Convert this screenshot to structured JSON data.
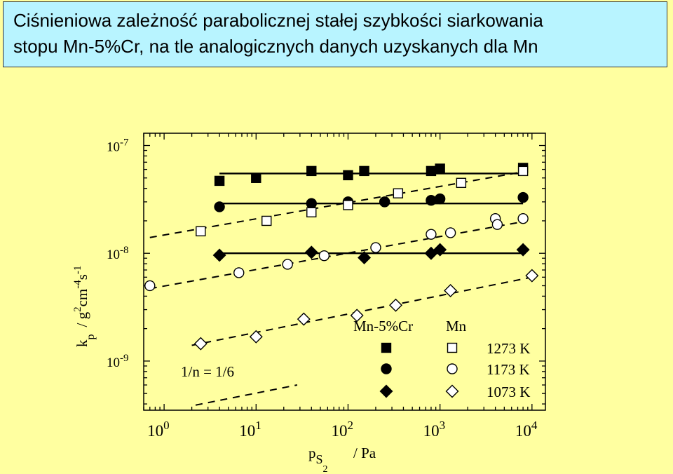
{
  "header": {
    "title_line1": "Ciśnieniowa zależność parabolicznej stałej szybkości siarkowania",
    "title_line2": "stopu Mn-5%Cr, na tle analogicznych danych uzyskanych dla Mn"
  },
  "chart_data": {
    "type": "scatter",
    "x_scale": "log",
    "y_scale": "log",
    "xlim": [
      0.6,
      14000
    ],
    "ylim": [
      3.5e-10,
      1.3e-07
    ],
    "grid": false,
    "xlabel": {
      "main": "p",
      "sub": "S",
      "subsub": "2",
      "unit": "/ Pa"
    },
    "ylabel": {
      "k": "k",
      "p": "p",
      "unit": "/ g",
      "e1": "2",
      "cm": "cm",
      "e2": "-4",
      "s": "s",
      "e3": "-1"
    },
    "x_ticks": [
      {
        "value": 1,
        "base": "10",
        "exp": "0"
      },
      {
        "value": 10,
        "base": "10",
        "exp": "1"
      },
      {
        "value": 100,
        "base": "10",
        "exp": "2"
      },
      {
        "value": 1000,
        "base": "10",
        "exp": "3"
      },
      {
        "value": 10000,
        "base": "10",
        "exp": "4"
      }
    ],
    "y_ticks": [
      {
        "value": 1e-07,
        "base": "10",
        "exp": "-7"
      },
      {
        "value": 1e-08,
        "base": "10",
        "exp": "-8"
      },
      {
        "value": 1e-09,
        "base": "10",
        "exp": "-9"
      }
    ],
    "legend": {
      "placement": "bottom-right",
      "col_alloy": "Mn-5%Cr",
      "col_metal": "Mn",
      "entries": [
        "1273 K",
        "1173 K",
        "1073 K"
      ]
    },
    "annotation": "1/n = 1/6",
    "series": [
      {
        "alloy": "Mn-5%Cr",
        "temperature": "1273 K",
        "marker": "square",
        "filled": true,
        "x": [
          4,
          10,
          40,
          100,
          150,
          800,
          1000,
          8000
        ],
        "y": [
          4.7e-08,
          5e-08,
          5.8e-08,
          5.3e-08,
          5.8e-08,
          5.8e-08,
          6.1e-08,
          6.2e-08
        ]
      },
      {
        "alloy": "Mn-5%Cr",
        "temperature": "1173 K",
        "marker": "circle",
        "filled": true,
        "x": [
          4,
          40,
          100,
          250,
          800,
          1000,
          8000
        ],
        "y": [
          2.7e-08,
          2.9e-08,
          3e-08,
          3e-08,
          3.1e-08,
          3.2e-08,
          3.3e-08
        ]
      },
      {
        "alloy": "Mn-5%Cr",
        "temperature": "1073 K",
        "marker": "diamond",
        "filled": true,
        "x": [
          4,
          40,
          150,
          800,
          1000,
          8000
        ],
        "y": [
          9.6e-09,
          1.02e-08,
          9.1e-09,
          1e-08,
          1.08e-08,
          1.08e-08
        ]
      },
      {
        "alloy": "Mn",
        "temperature": "1273 K",
        "marker": "square",
        "filled": false,
        "x": [
          2.5,
          13,
          40,
          100,
          350,
          1700,
          8000
        ],
        "y": [
          1.6e-08,
          2e-08,
          2.4e-08,
          2.8e-08,
          3.6e-08,
          4.5e-08,
          5.8e-08
        ]
      },
      {
        "alloy": "Mn",
        "temperature": "1173 K",
        "marker": "circle",
        "filled": false,
        "x": [
          0.7,
          6.5,
          22,
          55,
          200,
          800,
          1300,
          4000,
          4200,
          8000
        ],
        "y": [
          5e-09,
          6.6e-09,
          7.9e-09,
          9.5e-09,
          1.13e-08,
          1.5e-08,
          1.55e-08,
          2.1e-08,
          1.85e-08,
          2.1e-08
        ]
      },
      {
        "alloy": "Mn",
        "temperature": "1073 K",
        "marker": "diamond",
        "filled": false,
        "x": [
          2.5,
          10,
          33,
          125,
          330,
          1300,
          10000
        ],
        "y": [
          1.45e-09,
          1.68e-09,
          2.45e-09,
          2.65e-09,
          3.3e-09,
          4.5e-09,
          6.2e-09
        ]
      }
    ],
    "fit_lines": [
      {
        "style": "solid",
        "x": [
          4,
          8000
        ],
        "y": [
          5.5e-08,
          5.5e-08
        ]
      },
      {
        "style": "solid",
        "x": [
          4,
          8000
        ],
        "y": [
          2.9e-08,
          2.9e-08
        ]
      },
      {
        "style": "solid",
        "x": [
          4,
          8000
        ],
        "y": [
          1e-08,
          1e-08
        ]
      },
      {
        "style": "dashed",
        "x": [
          0.7,
          9000
        ],
        "y": [
          1.4e-08,
          5.8e-08
        ]
      },
      {
        "style": "dashed",
        "x": [
          0.7,
          9000
        ],
        "y": [
          4.7e-09,
          2e-08
        ]
      },
      {
        "style": "dashed",
        "x": [
          2.0,
          10000
        ],
        "y": [
          1.4e-09,
          6e-09
        ]
      },
      {
        "style": "dashed",
        "x": [
          2.2,
          28
        ],
        "y": [
          3.9e-10,
          6e-10
        ]
      }
    ]
  }
}
